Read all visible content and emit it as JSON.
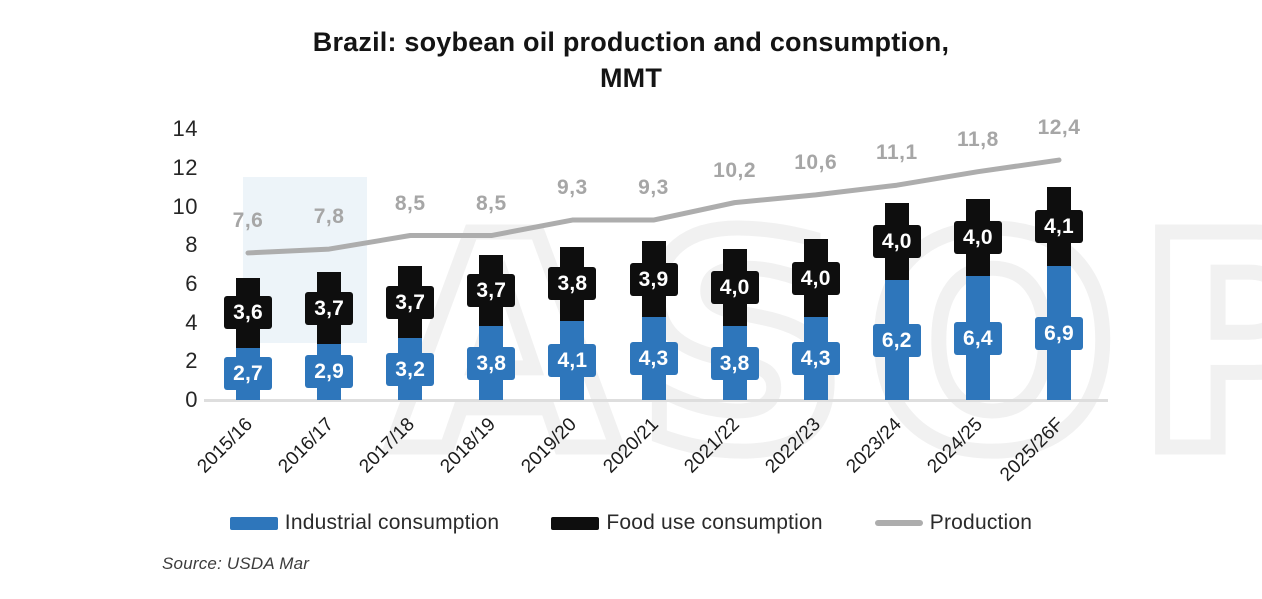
{
  "title": "Brazil: soybean oil production and consumption, MMT",
  "source": "Source: USDA Mar",
  "watermark": "ASOP",
  "colors": {
    "industrial_blue": "#2E76BB",
    "food_black": "#0E0E0E",
    "production_gray": "#ADADAD",
    "axis_line_gray": "#DEDEDE",
    "line_value_label_gray": "#A6A6A6"
  },
  "chart_data": {
    "type": "bar",
    "stacked": true,
    "grid": false,
    "legend_position": "bottom",
    "title": "Brazil: soybean oil production and consumption, MMT",
    "xlabel": "",
    "ylabel": "",
    "ylim": [
      0,
      14
    ],
    "y_ticks": [
      0,
      2,
      4,
      6,
      8,
      10,
      12,
      14
    ],
    "categories": [
      "2015/16",
      "2016/17",
      "2017/18",
      "2018/19",
      "2019/20",
      "2020/21",
      "2021/22",
      "2022/23",
      "2023/24",
      "2024/25",
      "2025/26F"
    ],
    "series": [
      {
        "name": "Industrial consumption",
        "type": "bar",
        "color": "#2E76BB",
        "values": [
          2.7,
          2.9,
          3.2,
          3.8,
          4.1,
          4.3,
          3.8,
          4.3,
          6.2,
          6.4,
          6.9
        ],
        "labels": [
          "2,7",
          "2,9",
          "3,2",
          "3,8",
          "4,1",
          "4,3",
          "3,8",
          "4,3",
          "6,2",
          "6,4",
          "6,9"
        ]
      },
      {
        "name": "Food use consumption",
        "type": "bar",
        "color": "#0E0E0E",
        "values": [
          3.6,
          3.7,
          3.7,
          3.7,
          3.8,
          3.9,
          4.0,
          4.0,
          4.0,
          4.0,
          4.1
        ],
        "labels": [
          "3,6",
          "3,7",
          "3,7",
          "3,7",
          "3,8",
          "3,9",
          "4,0",
          "4,0",
          "4,0",
          "4,0",
          "4,1"
        ]
      },
      {
        "name": "Production",
        "type": "line",
        "color": "#ADADAD",
        "values": [
          7.6,
          7.8,
          8.5,
          8.5,
          9.3,
          9.3,
          10.2,
          10.6,
          11.1,
          11.8,
          12.4
        ],
        "labels": [
          "7,6",
          "7,8",
          "8,5",
          "8,5",
          "9,3",
          "9,3",
          "10,2",
          "10,6",
          "11,1",
          "11,8",
          "12,4"
        ]
      }
    ]
  }
}
